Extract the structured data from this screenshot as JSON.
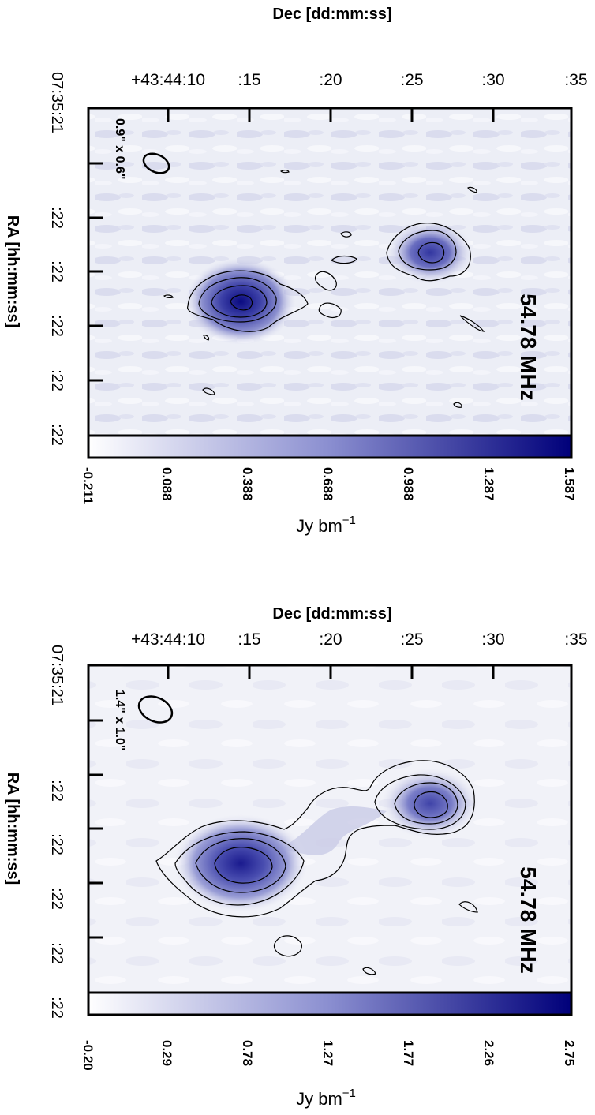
{
  "panels": [
    {
      "dec_axis_title": "Dec [dd:mm:ss]",
      "ra_axis_title": "RA [hh:mm:ss]",
      "dec_ticks": [
        "+43:44:10",
        ":15",
        ":20",
        ":25",
        ":30",
        ":35"
      ],
      "ra_ticks": [
        "07:35:21",
        ":22",
        ":22",
        ":22",
        ":22",
        ":22"
      ],
      "frequency_label": "54.78 MHz",
      "beam_label": "0.9\" x 0.6\"",
      "colorbar_ticks": [
        "-0.211",
        "0.088",
        "0.388",
        "0.688",
        "0.988",
        "1.287",
        "1.587"
      ],
      "colorbar_unit": "Jy bm",
      "colorbar_unit_exp": "−1",
      "colorbar_min": -0.211,
      "colorbar_max": 1.587
    },
    {
      "dec_axis_title": "Dec [dd:mm:ss]",
      "ra_axis_title": "RA [hh:mm:ss]",
      "dec_ticks": [
        "+43:44:10",
        ":15",
        ":20",
        ":25",
        ":30",
        ":35"
      ],
      "ra_ticks": [
        "07:35:21",
        ":22",
        ":22",
        ":22",
        ":22",
        ":22"
      ],
      "frequency_label": "54.78 MHz",
      "beam_label": "1.4\" x 1.0\"",
      "colorbar_ticks": [
        "-0.20",
        "0.29",
        "0.78",
        "1.27",
        "1.77",
        "2.26",
        "2.75"
      ],
      "colorbar_unit": "Jy bm",
      "colorbar_unit_exp": "−1",
      "colorbar_min": -0.2,
      "colorbar_max": 2.75
    }
  ],
  "colors": {
    "colormap_low": "#ffffff",
    "colormap_mid": "#8a8ed0",
    "colormap_high": "#00007a",
    "background_noise": "#e8e9f4",
    "contour": "#000000"
  }
}
